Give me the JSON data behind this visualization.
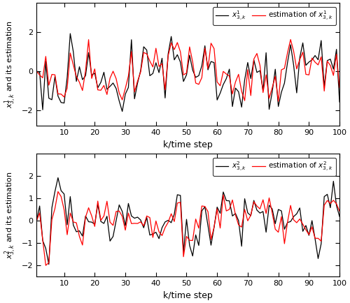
{
  "xlabel": "k/time step",
  "ylabel1": "$x_{3,k}^1$ and its estimation",
  "ylabel2": "$x_{3,k}^2$ and its estimation",
  "legend1_true": "$x_{3,k}^1$",
  "legend1_est": "estimation of $x_{3,k}^1$",
  "legend2_true": "$x_{3,k}^2$",
  "legend2_est": "estimation of $x_{3,k}^2$",
  "color_true": "black",
  "color_est": "red",
  "xlim": [
    1,
    100
  ],
  "ylim1": [
    -2.8,
    3.5
  ],
  "ylim2": [
    -2.5,
    3.0
  ],
  "yticks1": [
    -2,
    0,
    2
  ],
  "yticks2": [
    -2,
    -1,
    0,
    1,
    2
  ],
  "xticks": [
    10,
    20,
    30,
    40,
    50,
    60,
    70,
    80,
    90,
    100
  ],
  "n": 100,
  "linewidth": 0.9
}
